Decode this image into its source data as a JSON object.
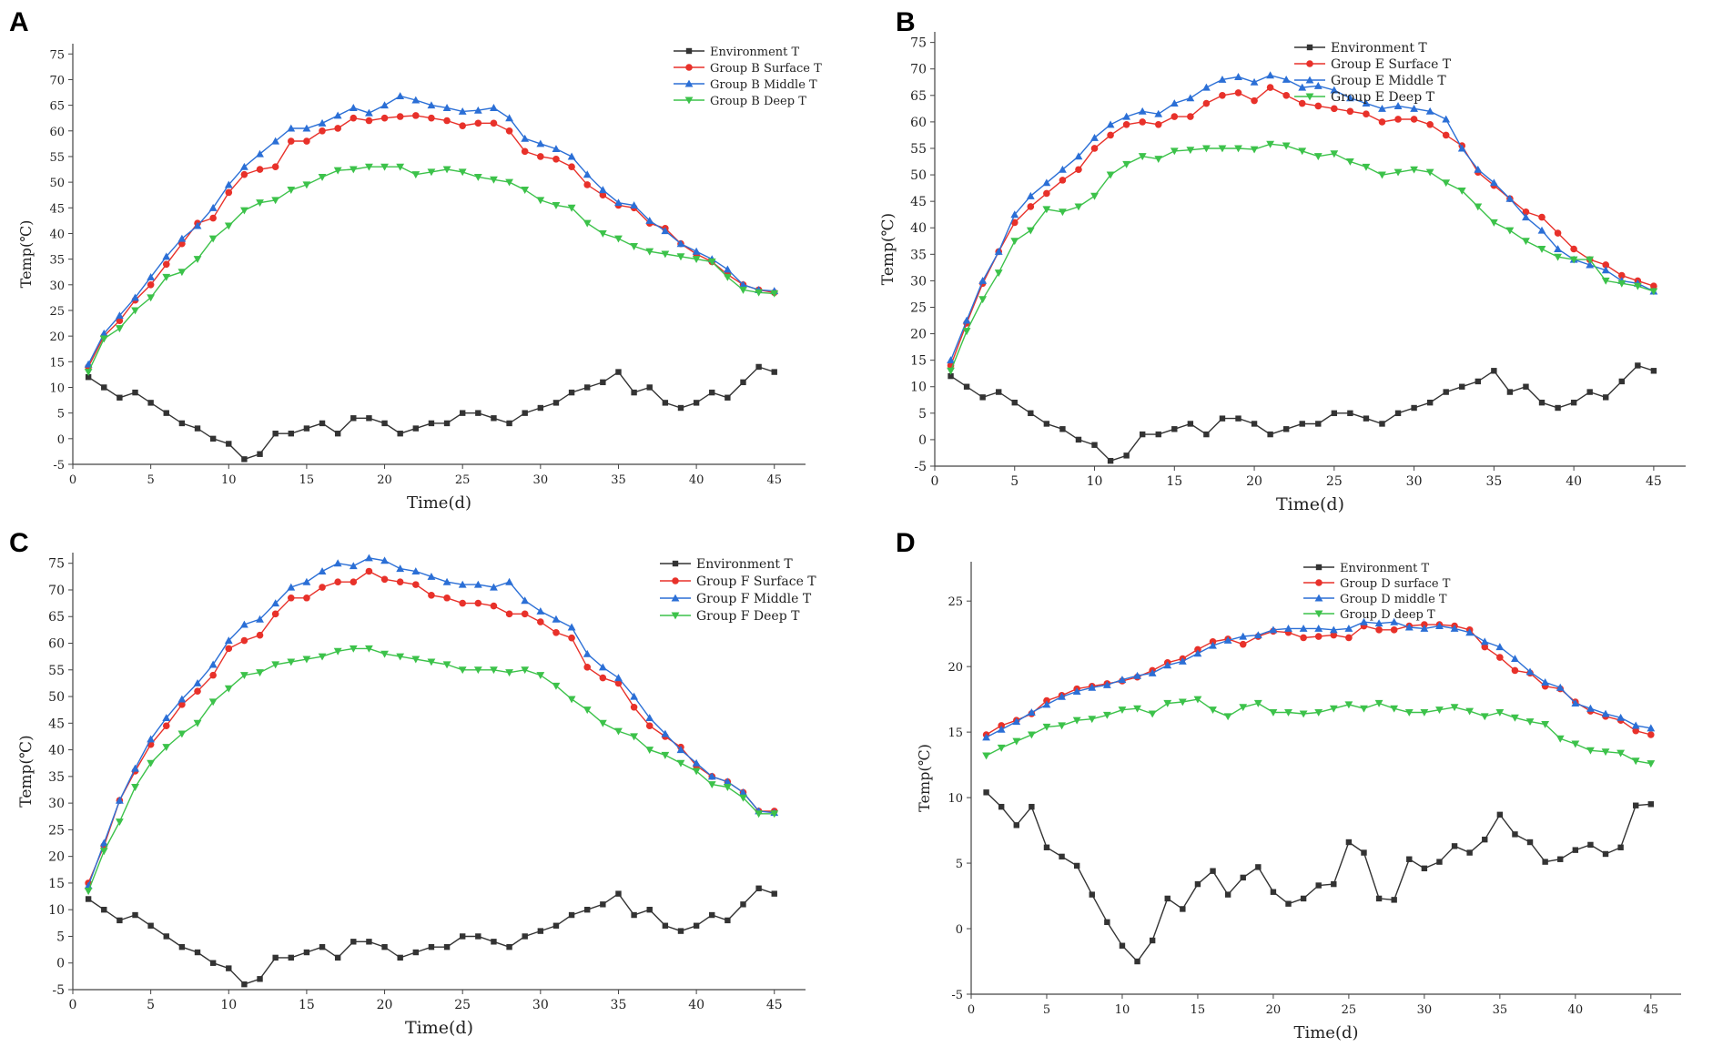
{
  "chart_data": [
    {
      "panel": "A",
      "type": "line",
      "title": "",
      "xlabel": "Time(d)",
      "ylabel": "Temp(℃)",
      "xlim": [
        0,
        47
      ],
      "ylim": [
        -5,
        77
      ],
      "xticks": [
        0,
        5,
        10,
        15,
        20,
        25,
        30,
        35,
        40,
        45
      ],
      "yticks": [
        -5,
        0,
        5,
        10,
        15,
        20,
        25,
        30,
        35,
        40,
        45,
        50,
        55,
        60,
        65,
        70,
        75
      ],
      "legend_position": "top-right",
      "x": [
        1,
        2,
        3,
        4,
        5,
        6,
        7,
        8,
        9,
        10,
        11,
        12,
        13,
        14,
        15,
        16,
        17,
        18,
        19,
        20,
        21,
        22,
        23,
        24,
        25,
        26,
        27,
        28,
        29,
        30,
        31,
        32,
        33,
        34,
        35,
        36,
        37,
        38,
        39,
        40,
        41,
        42,
        43,
        44,
        45
      ],
      "series": [
        {
          "name": "Environment T",
          "color": "#333333",
          "marker": "square",
          "values": [
            12,
            10,
            8,
            9,
            7,
            5,
            3,
            2,
            0,
            -1,
            -4,
            -3,
            1,
            1,
            2,
            3,
            1,
            4,
            4,
            3,
            1,
            2,
            3,
            3,
            5,
            5,
            4,
            3,
            5,
            6,
            7,
            9,
            10,
            11,
            13,
            9,
            10,
            7,
            6,
            7,
            9,
            8,
            11,
            14,
            13
          ]
        },
        {
          "name": "Group B Surface T",
          "color": "#e8312a",
          "marker": "circle",
          "values": [
            14,
            20,
            23,
            27,
            30,
            34,
            38,
            42,
            43,
            48,
            51.5,
            52.5,
            53,
            58,
            58,
            60,
            60.5,
            62.5,
            62,
            62.5,
            62.8,
            63,
            62.5,
            62,
            61,
            61.5,
            61.5,
            60,
            56,
            55,
            54.5,
            53,
            49.5,
            47.5,
            45.5,
            45,
            42,
            41,
            38,
            36,
            34.5,
            32,
            30,
            29,
            28.5
          ]
        },
        {
          "name": "Group B Middle T",
          "color": "#2b6fd6",
          "marker": "triangle-up",
          "values": [
            14.5,
            20.5,
            24,
            27.5,
            31.5,
            35.5,
            39,
            41.5,
            45,
            49.5,
            53,
            55.5,
            58,
            60.5,
            60.5,
            61.5,
            63,
            64.5,
            63.5,
            65,
            66.8,
            66,
            65,
            64.5,
            63.8,
            64,
            64.5,
            62.5,
            58.5,
            57.5,
            56.5,
            55,
            51.5,
            48.5,
            46,
            45.5,
            42.5,
            40.5,
            38,
            36.5,
            35,
            33,
            30,
            29,
            28.8
          ]
        },
        {
          "name": "Group B Deep T",
          "color": "#3cc24a",
          "marker": "triangle-down",
          "values": [
            13,
            19.5,
            21.5,
            25,
            27.5,
            31.5,
            32.5,
            35,
            39,
            41.5,
            44.5,
            46,
            46.5,
            48.5,
            49.5,
            51,
            52.3,
            52.5,
            53,
            53,
            53,
            51.5,
            52,
            52.5,
            52,
            51,
            50.5,
            50,
            48.5,
            46.5,
            45.5,
            45,
            42,
            40,
            39,
            37.5,
            36.5,
            36,
            35.5,
            35,
            34.5,
            31.5,
            29,
            28.5,
            28.3
          ]
        }
      ]
    },
    {
      "panel": "B",
      "type": "line",
      "title": "",
      "xlabel": "Time(d)",
      "ylabel": "Temp(℃)",
      "xlim": [
        0,
        47
      ],
      "ylim": [
        -5,
        77
      ],
      "xticks": [
        0,
        5,
        10,
        15,
        20,
        25,
        30,
        35,
        40,
        45
      ],
      "yticks": [
        -5,
        0,
        5,
        10,
        15,
        20,
        25,
        30,
        35,
        40,
        45,
        50,
        55,
        60,
        65,
        70,
        75
      ],
      "legend_position": "top-right",
      "x": [
        1,
        2,
        3,
        4,
        5,
        6,
        7,
        8,
        9,
        10,
        11,
        12,
        13,
        14,
        15,
        16,
        17,
        18,
        19,
        20,
        21,
        22,
        23,
        24,
        25,
        26,
        27,
        28,
        29,
        30,
        31,
        32,
        33,
        34,
        35,
        36,
        37,
        38,
        39,
        40,
        41,
        42,
        43,
        44,
        45
      ],
      "series": [
        {
          "name": "Environment T",
          "color": "#333333",
          "marker": "square",
          "values": [
            12,
            10,
            8,
            9,
            7,
            5,
            3,
            2,
            0,
            -1,
            -4,
            -3,
            1,
            1,
            2,
            3,
            1,
            4,
            4,
            3,
            1,
            2,
            3,
            3,
            5,
            5,
            4,
            3,
            5,
            6,
            7,
            9,
            10,
            11,
            13,
            9,
            10,
            7,
            6,
            7,
            9,
            8,
            11,
            14,
            13
          ]
        },
        {
          "name": "Group E Surface T",
          "color": "#e8312a",
          "marker": "circle",
          "values": [
            14,
            22,
            29.5,
            35.5,
            41,
            44,
            46.5,
            49,
            51,
            55,
            57.5,
            59.5,
            60,
            59.5,
            61,
            61,
            63.5,
            65,
            65.5,
            64,
            66.5,
            65,
            63.5,
            63,
            62.5,
            62,
            61.5,
            60,
            60.5,
            60.5,
            59.5,
            57.5,
            55.5,
            50.5,
            48,
            45.5,
            43,
            42,
            39,
            36,
            34,
            33,
            31,
            30,
            29
          ]
        },
        {
          "name": "Group E Middle T",
          "color": "#2b6fd6",
          "marker": "triangle-up",
          "values": [
            15,
            22.5,
            30,
            35.5,
            42.5,
            46,
            48.5,
            51,
            53.5,
            57,
            59.5,
            61,
            62,
            61.5,
            63.5,
            64.5,
            66.5,
            68,
            68.5,
            67.5,
            68.8,
            68,
            66.5,
            66.8,
            66,
            64.5,
            63.5,
            62.5,
            63,
            62.5,
            62,
            60.5,
            55,
            51,
            48.5,
            45.5,
            42,
            39.5,
            36,
            34,
            33,
            32,
            30,
            29.5,
            28
          ]
        },
        {
          "name": "Group E Deep T",
          "color": "#3cc24a",
          "marker": "triangle-down",
          "values": [
            13,
            20.5,
            26.5,
            31.5,
            37.5,
            39.5,
            43.5,
            43,
            44,
            46,
            50,
            52,
            53.5,
            53,
            54.5,
            54.7,
            55,
            55,
            55,
            54.8,
            55.8,
            55.5,
            54.5,
            53.5,
            54,
            52.5,
            51.5,
            50,
            50.5,
            51,
            50.5,
            48.5,
            47,
            44,
            41,
            39.5,
            37.5,
            36,
            34.5,
            34,
            34,
            30,
            29.5,
            29,
            28
          ]
        }
      ]
    },
    {
      "panel": "C",
      "type": "line",
      "title": "",
      "xlabel": "Time(d)",
      "ylabel": "Temp(℃)",
      "xlim": [
        0,
        47
      ],
      "ylim": [
        -5,
        77
      ],
      "xticks": [
        0,
        5,
        10,
        15,
        20,
        25,
        30,
        35,
        40,
        45
      ],
      "yticks": [
        -5,
        0,
        5,
        10,
        15,
        20,
        25,
        30,
        35,
        40,
        45,
        50,
        55,
        60,
        65,
        70,
        75
      ],
      "legend_position": "top-right",
      "x": [
        1,
        2,
        3,
        4,
        5,
        6,
        7,
        8,
        9,
        10,
        11,
        12,
        13,
        14,
        15,
        16,
        17,
        18,
        19,
        20,
        21,
        22,
        23,
        24,
        25,
        26,
        27,
        28,
        29,
        30,
        31,
        32,
        33,
        34,
        35,
        36,
        37,
        38,
        39,
        40,
        41,
        42,
        43,
        44,
        45
      ],
      "series": [
        {
          "name": "Environment T",
          "color": "#333333",
          "marker": "square",
          "values": [
            12,
            10,
            8,
            9,
            7,
            5,
            3,
            2,
            0,
            -1,
            -4,
            -3,
            1,
            1,
            2,
            3,
            1,
            4,
            4,
            3,
            1,
            2,
            3,
            3,
            5,
            5,
            4,
            3,
            5,
            6,
            7,
            9,
            10,
            11,
            13,
            9,
            10,
            7,
            6,
            7,
            9,
            8,
            11,
            14,
            13
          ]
        },
        {
          "name": "Group F  Surface  T",
          "color": "#e8312a",
          "marker": "circle",
          "values": [
            15,
            22,
            30.5,
            36,
            41,
            44.5,
            48.5,
            51,
            54,
            59,
            60.5,
            61.5,
            65.5,
            68.5,
            68.5,
            70.5,
            71.5,
            71.5,
            73.5,
            72,
            71.5,
            71,
            69,
            68.5,
            67.5,
            67.5,
            67,
            65.5,
            65.5,
            64,
            62,
            61,
            55.5,
            53.5,
            52.5,
            48,
            44.5,
            42.5,
            40.5,
            37,
            35,
            34,
            32,
            28.5,
            28.5
          ]
        },
        {
          "name": "Group F  Middle  T",
          "color": "#2b6fd6",
          "marker": "triangle-up",
          "values": [
            14.5,
            22.5,
            30.5,
            36.5,
            42,
            46,
            49.5,
            52.5,
            56,
            60.5,
            63.5,
            64.5,
            67.5,
            70.5,
            71.5,
            73.5,
            75,
            74.5,
            76,
            75.5,
            74,
            73.5,
            72.5,
            71.5,
            71,
            71,
            70.5,
            71.5,
            68,
            66,
            64.5,
            63,
            58,
            55.5,
            53.5,
            50,
            46,
            43,
            40,
            37.5,
            35,
            34,
            32,
            28.5,
            28.2
          ]
        },
        {
          "name": "Group F  Deep  T",
          "color": "#3cc24a",
          "marker": "triangle-down",
          "values": [
            13.5,
            21,
            26.5,
            33,
            37.5,
            40.5,
            43,
            45,
            49,
            51.5,
            54,
            54.5,
            56,
            56.5,
            57,
            57.5,
            58.5,
            59,
            59,
            58,
            57.5,
            57,
            56.5,
            56,
            55,
            55,
            55,
            54.5,
            55,
            54,
            52,
            49.5,
            47.5,
            45,
            43.5,
            42.5,
            40,
            39,
            37.5,
            36,
            33.5,
            33,
            31,
            28,
            28
          ]
        }
      ]
    },
    {
      "panel": "D",
      "type": "line",
      "title": "",
      "xlabel": "Time(d)",
      "ylabel": "Temp(℃)",
      "xlim": [
        0,
        47
      ],
      "ylim": [
        -5,
        28
      ],
      "xticks": [
        0,
        5,
        10,
        15,
        20,
        25,
        30,
        35,
        40,
        45
      ],
      "yticks": [
        -5,
        0,
        5,
        10,
        15,
        20,
        25
      ],
      "legend_position": "top-right",
      "x": [
        1,
        2,
        3,
        4,
        5,
        6,
        7,
        8,
        9,
        10,
        11,
        12,
        13,
        14,
        15,
        16,
        17,
        18,
        19,
        20,
        21,
        22,
        23,
        24,
        25,
        26,
        27,
        28,
        29,
        30,
        31,
        32,
        33,
        34,
        35,
        36,
        37,
        38,
        39,
        40,
        41,
        42,
        43,
        44,
        45
      ],
      "series": [
        {
          "name": "Environment T",
          "color": "#333333",
          "marker": "square",
          "values": [
            10.4,
            9.3,
            7.9,
            9.3,
            6.2,
            5.5,
            4.8,
            2.6,
            0.5,
            -1.3,
            -2.5,
            -0.9,
            2.3,
            1.5,
            3.4,
            4.4,
            2.6,
            3.9,
            4.7,
            2.8,
            1.9,
            2.3,
            3.3,
            3.4,
            6.6,
            5.8,
            2.3,
            2.2,
            5.3,
            4.6,
            5.1,
            6.3,
            5.8,
            6.8,
            8.7,
            7.2,
            6.6,
            5.1,
            5.3,
            6,
            6.4,
            5.7,
            6.2,
            9.4,
            9.5
          ]
        },
        {
          "name": "Group D surface T",
          "color": "#e8312a",
          "marker": "circle",
          "values": [
            14.8,
            15.5,
            15.9,
            16.4,
            17.4,
            17.8,
            18.3,
            18.5,
            18.7,
            18.9,
            19.2,
            19.7,
            20.3,
            20.6,
            21.3,
            21.9,
            22.1,
            21.7,
            22.3,
            22.7,
            22.6,
            22.2,
            22.3,
            22.4,
            22.2,
            23.1,
            22.8,
            22.8,
            23.1,
            23.2,
            23.2,
            23.1,
            22.8,
            21.5,
            20.7,
            19.7,
            19.5,
            18.5,
            18.3,
            17.3,
            16.6,
            16.2,
            15.9,
            15.1,
            14.8
          ]
        },
        {
          "name": "Group D middle T",
          "color": "#2b6fd6",
          "marker": "triangle-up",
          "values": [
            14.6,
            15.2,
            15.8,
            16.5,
            17.1,
            17.7,
            18.1,
            18.4,
            18.6,
            19,
            19.3,
            19.5,
            20.1,
            20.4,
            21,
            21.6,
            22,
            22.3,
            22.4,
            22.8,
            22.9,
            22.9,
            22.9,
            22.8,
            22.9,
            23.4,
            23.3,
            23.4,
            23,
            22.9,
            23.1,
            22.9,
            22.6,
            21.9,
            21.5,
            20.6,
            19.6,
            18.8,
            18.4,
            17.2,
            16.8,
            16.4,
            16.1,
            15.5,
            15.3
          ]
        },
        {
          "name": "Group D deep T",
          "color": "#3cc24a",
          "marker": "triangle-down",
          "values": [
            13.2,
            13.8,
            14.3,
            14.8,
            15.4,
            15.5,
            15.9,
            16,
            16.3,
            16.7,
            16.8,
            16.4,
            17.2,
            17.3,
            17.5,
            16.7,
            16.2,
            16.9,
            17.2,
            16.5,
            16.5,
            16.4,
            16.5,
            16.8,
            17.1,
            16.8,
            17.2,
            16.8,
            16.5,
            16.5,
            16.7,
            16.9,
            16.6,
            16.2,
            16.5,
            16.1,
            15.8,
            15.6,
            14.5,
            14.1,
            13.6,
            13.5,
            13.4,
            12.8,
            12.6
          ]
        }
      ]
    }
  ]
}
